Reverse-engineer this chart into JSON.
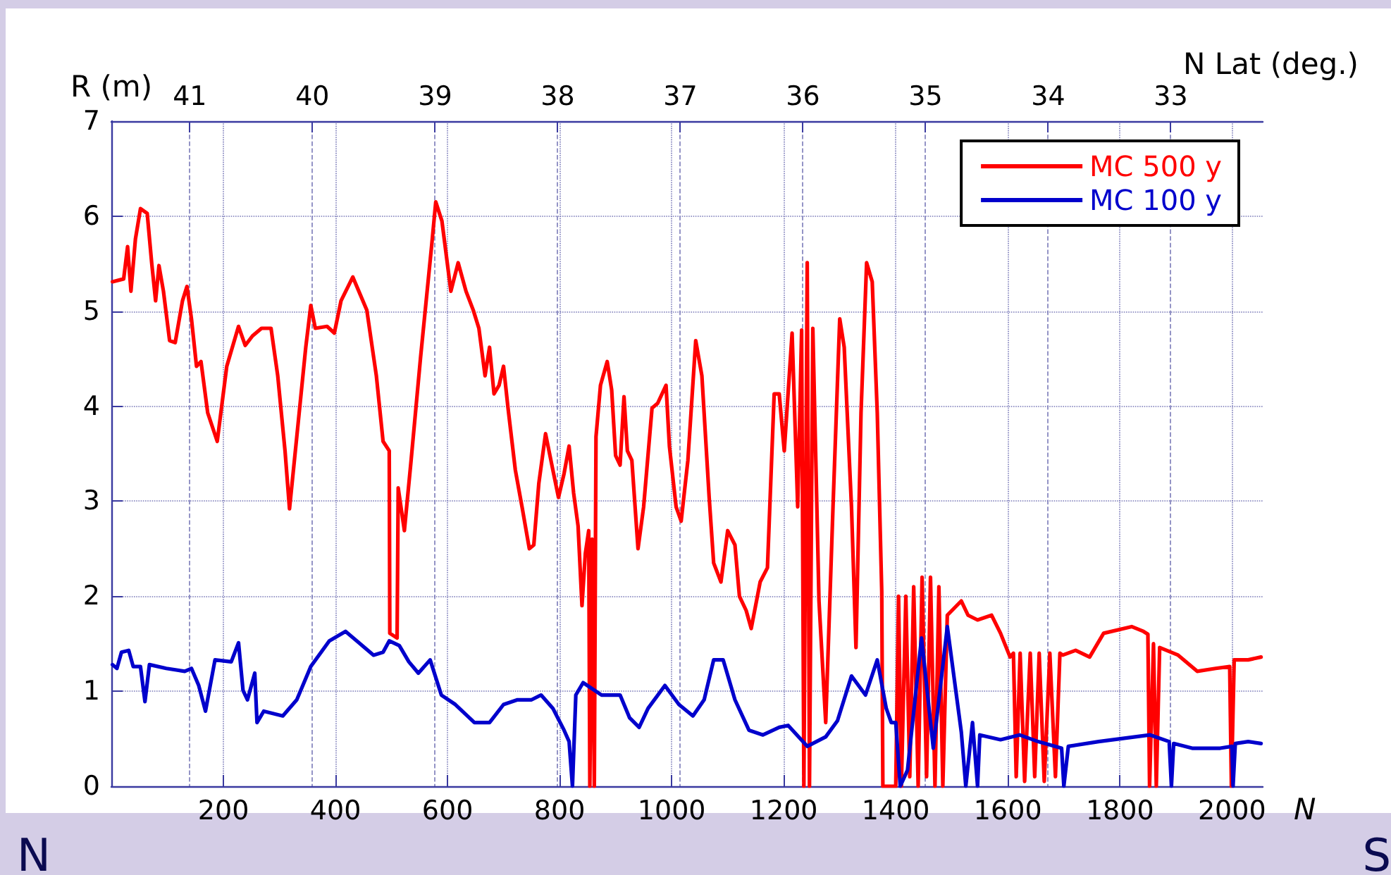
{
  "chart_data": {
    "type": "line",
    "xlabel": "N",
    "ylabel": "R (m)",
    "x2label": "N Lat (deg.)",
    "xlim": [
      0,
      2055
    ],
    "xticks": [
      200,
      400,
      600,
      800,
      1000,
      1200,
      1400,
      1600,
      1800,
      2000
    ],
    "ylim": [
      0,
      7
    ],
    "yticks": [
      0,
      1,
      2,
      3,
      4,
      5,
      6,
      7
    ],
    "x2lim": [
      41.64,
      32.25
    ],
    "x2ticks": [
      41,
      40,
      39,
      38,
      37,
      36,
      35,
      34,
      33
    ],
    "grid": true,
    "legend": "top right",
    "marker": "none",
    "line_style": "solid",
    "annotations": [
      "N",
      "S"
    ],
    "series": [
      {
        "name": "MC 500 y",
        "color": "#ff0000",
        "x": [
          2,
          22,
          29,
          35,
          43,
          52,
          64,
          72,
          79,
          85,
          93,
          104,
          114,
          127,
          135,
          143,
          152,
          160,
          172,
          189,
          206,
          227,
          239,
          252,
          268,
          285,
          297,
          310,
          318,
          331,
          347,
          356,
          364,
          385,
          398,
          410,
          431,
          456,
          473,
          485,
          496,
          497,
          510,
          512,
          523,
          535,
          552,
          572,
          579,
          590,
          606,
          619,
          633,
          646,
          656,
          667,
          675,
          683,
          692,
          700,
          708,
          721,
          733,
          746,
          754,
          763,
          775,
          788,
          798,
          808,
          817,
          825,
          833,
          840,
          846,
          852,
          854,
          858,
          862,
          865,
          873,
          885,
          893,
          900,
          908,
          915,
          921,
          929,
          940,
          950,
          965,
          975,
          990,
          996,
          1008,
          1017,
          1029,
          1043,
          1054,
          1067,
          1075,
          1088,
          1100,
          1113,
          1121,
          1133,
          1142,
          1158,
          1171,
          1183,
          1192,
          1201,
          1215,
          1225,
          1232,
          1236,
          1242,
          1246,
          1252,
          1263,
          1275,
          1288,
          1300,
          1308,
          1321,
          1329,
          1338,
          1348,
          1358,
          1367,
          1375,
          1377,
          1398,
          1400,
          1405,
          1410,
          1418,
          1425,
          1432,
          1440,
          1447,
          1455,
          1462,
          1470,
          1477,
          1484,
          1492,
          1517,
          1529,
          1546,
          1571,
          1587,
          1604,
          1610,
          1615,
          1622,
          1630,
          1640,
          1648,
          1656,
          1665,
          1675,
          1685,
          1693,
          1698,
          1721,
          1746,
          1771,
          1821,
          1842,
          1850,
          1853,
          1860,
          1865,
          1871,
          1904,
          1938,
          1971,
          1996,
          1999,
          2004,
          2029,
          2052
        ],
        "values": [
          5.31,
          5.34,
          5.68,
          5.21,
          5.76,
          6.08,
          6.03,
          5.51,
          5.11,
          5.48,
          5.21,
          4.69,
          4.67,
          5.11,
          5.26,
          4.92,
          4.42,
          4.47,
          3.93,
          3.63,
          4.42,
          4.84,
          4.64,
          4.74,
          4.82,
          4.82,
          4.32,
          3.53,
          2.92,
          3.68,
          4.62,
          5.06,
          4.82,
          4.84,
          4.77,
          5.11,
          5.36,
          5.01,
          4.32,
          3.63,
          3.53,
          1.61,
          1.56,
          3.14,
          2.69,
          3.43,
          4.52,
          5.71,
          6.15,
          5.95,
          5.21,
          5.51,
          5.21,
          5.01,
          4.82,
          4.32,
          4.62,
          4.13,
          4.22,
          4.42,
          3.98,
          3.33,
          2.94,
          2.5,
          2.54,
          3.19,
          3.71,
          3.33,
          3.04,
          3.29,
          3.58,
          3.09,
          2.74,
          1.9,
          2.45,
          2.69,
          0,
          2.6,
          0,
          3.68,
          4.22,
          4.47,
          4.17,
          3.48,
          3.38,
          4.1,
          3.53,
          3.43,
          2.5,
          2.94,
          3.98,
          4.03,
          4.22,
          3.58,
          2.94,
          2.79,
          3.43,
          4.69,
          4.32,
          3.04,
          2.35,
          2.15,
          2.69,
          2.54,
          2.0,
          1.85,
          1.66,
          2.15,
          2.3,
          4.13,
          4.13,
          3.53,
          4.77,
          2.94,
          4.8,
          0,
          5.51,
          0,
          4.82,
          1.95,
          0.67,
          2.94,
          4.92,
          4.62,
          2.94,
          1.46,
          3.93,
          5.51,
          5.31,
          3.93,
          2.05,
          0,
          0,
          0,
          2.0,
          0,
          2.0,
          0.1,
          2.1,
          0,
          2.2,
          0.1,
          2.2,
          0,
          2.1,
          0,
          1.8,
          1.95,
          1.8,
          1.75,
          1.8,
          1.61,
          1.36,
          1.4,
          0.1,
          1.4,
          0.05,
          1.4,
          0.1,
          1.4,
          0.05,
          1.4,
          0.1,
          1.4,
          1.38,
          1.43,
          1.36,
          1.61,
          1.68,
          1.63,
          1.6,
          0,
          1.5,
          0,
          1.46,
          1.38,
          1.21,
          1.24,
          1.26,
          0,
          1.33,
          1.33,
          1.36
        ]
      },
      {
        "name": "MC 100 y",
        "color": "#0000cc",
        "x": [
          2,
          10,
          18,
          31,
          39,
          52,
          60,
          68,
          98,
          131,
          143,
          156,
          168,
          185,
          214,
          227,
          235,
          243,
          256,
          260,
          272,
          306,
          331,
          356,
          389,
          418,
          448,
          468,
          485,
          496,
          514,
          531,
          548,
          569,
          589,
          614,
          648,
          675,
          700,
          725,
          750,
          767,
          788,
          808,
          817,
          823,
          829,
          842,
          875,
          908,
          925,
          942,
          958,
          988,
          1013,
          1038,
          1058,
          1075,
          1092,
          1113,
          1138,
          1163,
          1192,
          1208,
          1242,
          1275,
          1296,
          1321,
          1346,
          1367,
          1383,
          1392,
          1400,
          1408,
          1421,
          1446,
          1467,
          1492,
          1517,
          1525,
          1537,
          1546,
          1550,
          1587,
          1621,
          1654,
          1696,
          1700,
          1708,
          1762,
          1854,
          1888,
          1892,
          1896,
          1929,
          1979,
          2000,
          2002,
          2006,
          2029,
          2052
        ],
        "values": [
          1.28,
          1.24,
          1.41,
          1.43,
          1.26,
          1.26,
          0.89,
          1.28,
          1.24,
          1.21,
          1.24,
          1.06,
          0.79,
          1.33,
          1.31,
          1.51,
          1.01,
          0.91,
          1.19,
          0.67,
          0.79,
          0.74,
          0.91,
          1.26,
          1.53,
          1.63,
          1.48,
          1.38,
          1.41,
          1.53,
          1.48,
          1.31,
          1.19,
          1.33,
          0.96,
          0.86,
          0.67,
          0.67,
          0.86,
          0.91,
          0.91,
          0.96,
          0.82,
          0.59,
          0.47,
          0,
          0.96,
          1.09,
          0.96,
          0.96,
          0.72,
          0.62,
          0.82,
          1.06,
          0.86,
          0.74,
          0.91,
          1.33,
          1.33,
          0.91,
          0.59,
          0.54,
          0.62,
          0.64,
          0.42,
          0.52,
          0.69,
          1.16,
          0.96,
          1.33,
          0.82,
          0.67,
          0.67,
          0,
          0.17,
          1.56,
          0.4,
          1.68,
          0.57,
          0,
          0.67,
          0,
          0.54,
          0.49,
          0.54,
          0.47,
          0.4,
          0,
          0.42,
          0.47,
          0.54,
          0.47,
          0,
          0.45,
          0.4,
          0.4,
          0.42,
          0,
          0.45,
          0.47,
          0.45
        ]
      }
    ]
  }
}
